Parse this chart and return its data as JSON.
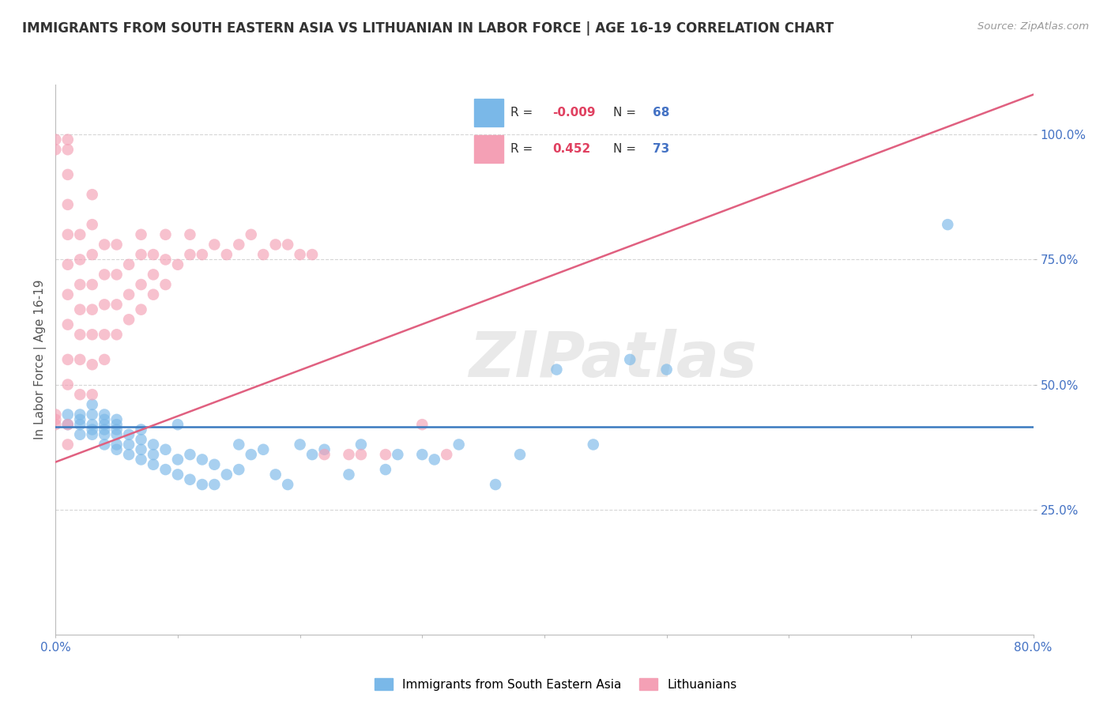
{
  "title": "IMMIGRANTS FROM SOUTH EASTERN ASIA VS LITHUANIAN IN LABOR FORCE | AGE 16-19 CORRELATION CHART",
  "source": "Source: ZipAtlas.com",
  "ylabel": "In Labor Force | Age 16-19",
  "x_min": 0.0,
  "x_max": 0.8,
  "y_min": 0.0,
  "y_max": 1.1,
  "y_ticks": [
    0.25,
    0.5,
    0.75,
    1.0
  ],
  "y_tick_labels": [
    "25.0%",
    "50.0%",
    "75.0%",
    "100.0%"
  ],
  "x_ticks": [
    0.0,
    0.1,
    0.2,
    0.3,
    0.4,
    0.5,
    0.6,
    0.7,
    0.8
  ],
  "x_tick_labels": [
    "0.0%",
    "",
    "",
    "",
    "",
    "",
    "",
    "",
    "80.0%"
  ],
  "blue_color": "#7ab8e8",
  "pink_color": "#f4a0b5",
  "blue_line_color": "#3a7abf",
  "pink_line_color": "#e06080",
  "R_blue": -0.009,
  "N_blue": 68,
  "R_pink": 0.452,
  "N_pink": 73,
  "watermark": "ZIPatlas",
  "blue_line_y": 0.415,
  "pink_line_x0": 0.0,
  "pink_line_y0": 0.345,
  "pink_line_x1": 0.8,
  "pink_line_y1": 1.08,
  "blue_scatter_x": [
    0.01,
    0.01,
    0.02,
    0.02,
    0.02,
    0.02,
    0.03,
    0.03,
    0.03,
    0.03,
    0.03,
    0.04,
    0.04,
    0.04,
    0.04,
    0.04,
    0.04,
    0.05,
    0.05,
    0.05,
    0.05,
    0.05,
    0.05,
    0.06,
    0.06,
    0.06,
    0.07,
    0.07,
    0.07,
    0.07,
    0.08,
    0.08,
    0.08,
    0.09,
    0.09,
    0.1,
    0.1,
    0.1,
    0.11,
    0.11,
    0.12,
    0.12,
    0.13,
    0.13,
    0.14,
    0.15,
    0.15,
    0.16,
    0.17,
    0.18,
    0.19,
    0.2,
    0.21,
    0.22,
    0.24,
    0.25,
    0.27,
    0.28,
    0.3,
    0.31,
    0.33,
    0.36,
    0.38,
    0.41,
    0.44,
    0.47,
    0.5,
    0.73
  ],
  "blue_scatter_y": [
    0.42,
    0.44,
    0.4,
    0.42,
    0.43,
    0.44,
    0.4,
    0.41,
    0.42,
    0.44,
    0.46,
    0.38,
    0.4,
    0.41,
    0.42,
    0.43,
    0.44,
    0.37,
    0.38,
    0.4,
    0.41,
    0.42,
    0.43,
    0.36,
    0.38,
    0.4,
    0.35,
    0.37,
    0.39,
    0.41,
    0.34,
    0.36,
    0.38,
    0.33,
    0.37,
    0.32,
    0.35,
    0.42,
    0.31,
    0.36,
    0.3,
    0.35,
    0.3,
    0.34,
    0.32,
    0.33,
    0.38,
    0.36,
    0.37,
    0.32,
    0.3,
    0.38,
    0.36,
    0.37,
    0.32,
    0.38,
    0.33,
    0.36,
    0.36,
    0.35,
    0.38,
    0.3,
    0.36,
    0.53,
    0.38,
    0.55,
    0.53,
    0.82
  ],
  "pink_scatter_x": [
    0.0,
    0.0,
    0.0,
    0.0,
    0.0,
    0.01,
    0.01,
    0.01,
    0.01,
    0.01,
    0.01,
    0.01,
    0.01,
    0.01,
    0.01,
    0.01,
    0.01,
    0.02,
    0.02,
    0.02,
    0.02,
    0.02,
    0.02,
    0.02,
    0.03,
    0.03,
    0.03,
    0.03,
    0.03,
    0.03,
    0.03,
    0.03,
    0.04,
    0.04,
    0.04,
    0.04,
    0.04,
    0.05,
    0.05,
    0.05,
    0.05,
    0.06,
    0.06,
    0.06,
    0.07,
    0.07,
    0.07,
    0.07,
    0.08,
    0.08,
    0.08,
    0.09,
    0.09,
    0.09,
    0.1,
    0.11,
    0.11,
    0.12,
    0.13,
    0.14,
    0.15,
    0.16,
    0.17,
    0.18,
    0.19,
    0.2,
    0.21,
    0.22,
    0.24,
    0.25,
    0.27,
    0.3,
    0.32
  ],
  "pink_scatter_y": [
    0.42,
    0.43,
    0.44,
    0.97,
    0.99,
    0.38,
    0.42,
    0.5,
    0.55,
    0.62,
    0.68,
    0.74,
    0.8,
    0.86,
    0.92,
    0.97,
    0.99,
    0.48,
    0.55,
    0.6,
    0.65,
    0.7,
    0.75,
    0.8,
    0.48,
    0.54,
    0.6,
    0.65,
    0.7,
    0.76,
    0.82,
    0.88,
    0.55,
    0.6,
    0.66,
    0.72,
    0.78,
    0.6,
    0.66,
    0.72,
    0.78,
    0.63,
    0.68,
    0.74,
    0.65,
    0.7,
    0.76,
    0.8,
    0.68,
    0.72,
    0.76,
    0.7,
    0.75,
    0.8,
    0.74,
    0.76,
    0.8,
    0.76,
    0.78,
    0.76,
    0.78,
    0.8,
    0.76,
    0.78,
    0.78,
    0.76,
    0.76,
    0.36,
    0.36,
    0.36,
    0.36,
    0.42,
    0.36
  ]
}
